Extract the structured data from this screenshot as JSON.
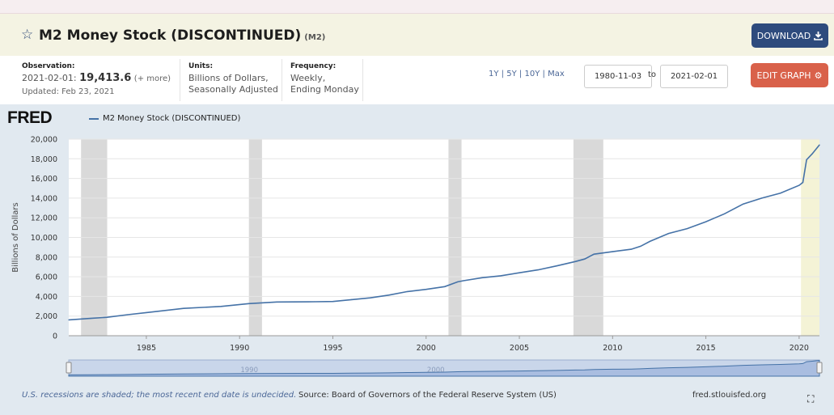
{
  "header": {
    "title": "M2 Money Stock (DISCONTINUED)",
    "series_id": "(M2)",
    "download_label": "DOWNLOAD",
    "download_icon": "download-icon",
    "star_icon": "star-outline-icon"
  },
  "info": {
    "observation_label": "Observation:",
    "observation_date": "2021-02-01:",
    "observation_value": "19,413.6",
    "observation_more": "(+ more)",
    "updated": "Updated: Feb 23, 2021",
    "units_label": "Units:",
    "units_line1": "Billions of Dollars,",
    "units_line2": "Seasonally Adjusted",
    "frequency_label": "Frequency:",
    "frequency_line1": "Weekly,",
    "frequency_line2": "Ending Monday",
    "range_buttons": [
      "1Y",
      "5Y",
      "10Y",
      "Max"
    ],
    "separator": "|",
    "start_date": "1980-11-03",
    "to_label": "to",
    "end_date": "2021-02-01",
    "edit_label": "EDIT GRAPH",
    "edit_icon": "gear-icon"
  },
  "chart": {
    "logo": "FRED",
    "legend_label": "M2 Money Stock (DISCONTINUED)"
  },
  "footer": {
    "recession_note": "U.S. recessions are shaded; the most recent end date is undecided.",
    "source": "Source: Board of Governors of the Federal Reserve System (US)",
    "url": "fred.stlouisfed.org",
    "fullscreen_icon": "fullscreen-icon"
  },
  "colors": {
    "line": "#4572a7",
    "recession": "#d9d9d9",
    "recent": "#f4f3d6",
    "accent_blue": "#2e4b7d",
    "accent_red": "#d9614a"
  },
  "chart_data": {
    "type": "line",
    "ylabel": "Billions of Dollars",
    "xlim": [
      1980.84,
      2021.09
    ],
    "ylim": [
      0,
      20000
    ],
    "y_ticks": [
      0,
      2000,
      4000,
      6000,
      8000,
      10000,
      12000,
      14000,
      16000,
      18000,
      20000
    ],
    "y_tick_labels": [
      "0",
      "2,000",
      "4,000",
      "6,000",
      "8,000",
      "10,000",
      "12,000",
      "14,000",
      "16,000",
      "18,000",
      "20,000"
    ],
    "x_ticks": [
      1985,
      1990,
      1995,
      2000,
      2005,
      2010,
      2015,
      2020
    ],
    "x_tick_labels": [
      "1985",
      "1990",
      "1995",
      "2000",
      "2005",
      "2010",
      "2015",
      "2020"
    ],
    "navigator_labels": [
      "1990",
      "2000"
    ],
    "recessions": [
      [
        1981.5,
        1982.9
      ],
      [
        1990.5,
        1991.2
      ],
      [
        2001.2,
        2001.9
      ],
      [
        2007.9,
        2009.5
      ],
      [
        2020.1,
        null
      ]
    ],
    "series": [
      {
        "name": "M2 Money Stock (DISCONTINUED)",
        "x": [
          1980.84,
          1982.0,
          1982.9,
          1984.0,
          1985.0,
          1987.0,
          1989.0,
          1990.5,
          1992.0,
          1994.0,
          1995.0,
          1996.0,
          1997.0,
          1998.0,
          1999.0,
          2000.0,
          2001.0,
          2001.7,
          2002.0,
          2003.0,
          2004.0,
          2005.0,
          2006.0,
          2007.0,
          2008.0,
          2008.5,
          2009.0,
          2010.0,
          2011.0,
          2011.5,
          2012.0,
          2013.0,
          2014.0,
          2015.0,
          2016.0,
          2017.0,
          2018.0,
          2019.0,
          2020.0,
          2020.2,
          2020.4,
          2020.7,
          2021.0,
          2021.09
        ],
        "y": [
          1610,
          1760,
          1880,
          2140,
          2350,
          2780,
          2980,
          3270,
          3430,
          3460,
          3480,
          3670,
          3850,
          4130,
          4490,
          4720,
          5000,
          5480,
          5600,
          5900,
          6100,
          6400,
          6700,
          7100,
          7550,
          7800,
          8300,
          8550,
          8800,
          9100,
          9600,
          10400,
          10900,
          11600,
          12400,
          13400,
          14000,
          14500,
          15300,
          15600,
          17900,
          18500,
          19200,
          19413.6
        ]
      }
    ]
  }
}
